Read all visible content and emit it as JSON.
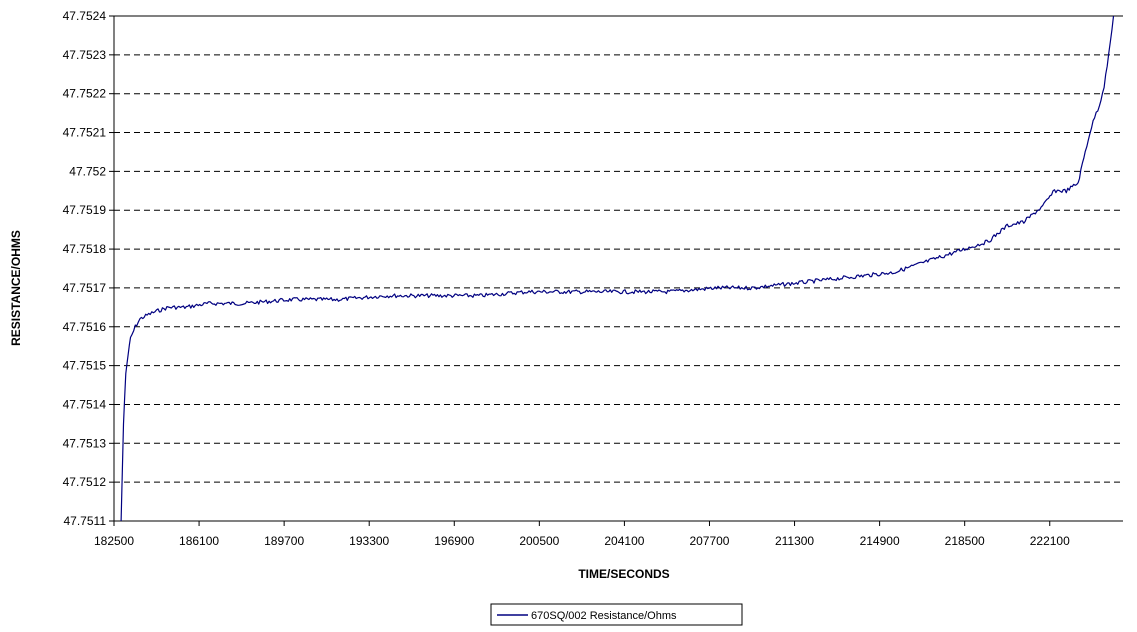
{
  "chart_data": {
    "type": "line",
    "xlabel": "TIME/SECONDS",
    "ylabel": "RESISTANCE/OHMS",
    "xlim": [
      182500,
      225200
    ],
    "ylim": [
      47.7511,
      47.7524
    ],
    "x_ticks": [
      182500,
      186100,
      189700,
      193300,
      196900,
      200500,
      204100,
      207700,
      211300,
      214900,
      218500,
      222100
    ],
    "x_tick_labels": [
      "182500",
      "186100",
      "189700",
      "193300",
      "196900",
      "200500",
      "204100",
      "207700",
      "211300",
      "214900",
      "218500",
      "222100"
    ],
    "y_ticks": [
      47.7511,
      47.7512,
      47.7513,
      47.7514,
      47.7515,
      47.7516,
      47.7517,
      47.7518,
      47.7519,
      47.752,
      47.7521,
      47.7522,
      47.7523,
      47.7524
    ],
    "y_tick_labels": [
      "47.7511",
      "47.7512",
      "47.7513",
      "47.7514",
      "47.7515",
      "47.7516",
      "47.7517",
      "47.7518",
      "47.7519",
      "47.752",
      "47.7521",
      "47.7522",
      "47.7523",
      "47.7524"
    ],
    "grid": "horizontal dashed",
    "legend_position": "bottom-center",
    "series": [
      {
        "name": "670SQ/002 Resistance/Ohms",
        "color": "#000080",
        "x": [
          182800,
          182900,
          183000,
          183100,
          183200,
          183400,
          183600,
          183900,
          184300,
          184800,
          185500,
          186500,
          188000,
          190000,
          192000,
          194000,
          196000,
          198000,
          200000,
          202000,
          204000,
          206000,
          208000,
          209500,
          211000,
          212500,
          214000,
          215500,
          216500,
          217500,
          218500,
          219500,
          220300,
          221000,
          221800,
          222300,
          222800,
          223300,
          223600,
          223800,
          224000,
          224200,
          224400,
          224600,
          224800
        ],
        "y": [
          47.7511,
          47.75135,
          47.75148,
          47.75153,
          47.75157,
          47.7516,
          47.75162,
          47.75163,
          47.75164,
          47.75165,
          47.75165,
          47.75166,
          47.75166,
          47.75167,
          47.75167,
          47.75168,
          47.75168,
          47.75168,
          47.75169,
          47.75169,
          47.75169,
          47.75169,
          47.7517,
          47.7517,
          47.75171,
          47.75172,
          47.75173,
          47.75174,
          47.75176,
          47.75178,
          47.7518,
          47.75182,
          47.75186,
          47.75187,
          47.75191,
          47.75195,
          47.75195,
          47.75197,
          47.75205,
          47.7521,
          47.75214,
          47.75217,
          47.75222,
          47.7523,
          47.7524
        ]
      }
    ]
  }
}
